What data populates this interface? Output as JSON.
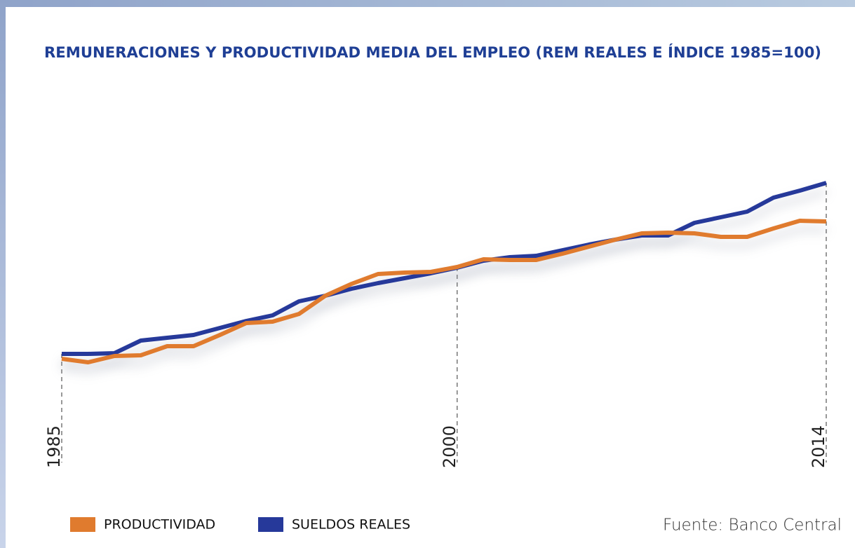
{
  "chart_data": {
    "type": "line",
    "title": "REMUNERACIONES Y PRODUCTIVIDAD MEDIA DEL EMPLEO (REM REALES E ÍNDICE 1985=100)",
    "source": "Fuente: Banco Central",
    "x": [
      1985,
      1986,
      1987,
      1988,
      1989,
      1990,
      1991,
      1992,
      1993,
      1994,
      1995,
      1996,
      1997,
      1998,
      1999,
      2000,
      2001,
      2002,
      2003,
      2004,
      2005,
      2006,
      2007,
      2008,
      2009,
      2010,
      2011,
      2012,
      2013,
      2014
    ],
    "xlim": [
      1985,
      2014
    ],
    "xticks": [
      1985,
      2000,
      2014
    ],
    "ylim": [
      60,
      240
    ],
    "series": [
      {
        "name": "PRODUCTIVIDAD",
        "color": "#e07b2e",
        "values": [
          97.2,
          95.2,
          98.8,
          99.2,
          104.4,
          104.4,
          110.8,
          117.6,
          118.4,
          122.8,
          133.2,
          140,
          145.6,
          146.4,
          146.8,
          149.6,
          154,
          153.6,
          153.6,
          157.2,
          161.2,
          165.2,
          168.8,
          169.2,
          168.8,
          166.8,
          166.8,
          171.6,
          176,
          175.6
        ]
      },
      {
        "name": "SUELDOS REALES",
        "color": "#26399a",
        "values": [
          100,
          100,
          100.4,
          107.6,
          109.2,
          110.8,
          114.8,
          118.8,
          122,
          130,
          133.2,
          137.2,
          140.4,
          143.2,
          146,
          149.2,
          153.2,
          155.2,
          156,
          159.2,
          162.4,
          165.2,
          167.6,
          167.6,
          174.8,
          178,
          181.2,
          189.2,
          193.2,
          197.6
        ]
      }
    ]
  }
}
